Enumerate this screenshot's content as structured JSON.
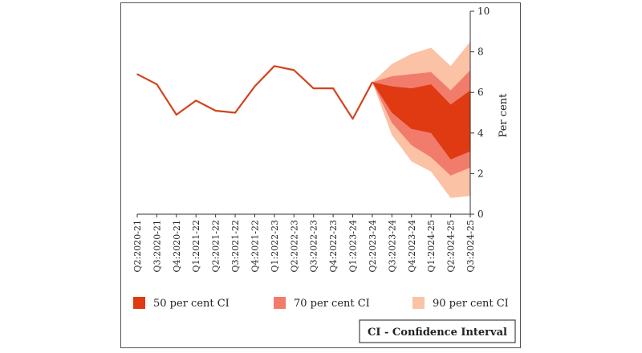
{
  "chart_data": {
    "type": "line",
    "categories": [
      "Q2:2020-21",
      "Q3:2020-21",
      "Q4:2020-21",
      "Q1:2021-22",
      "Q2:2021-22",
      "Q3:2021-22",
      "Q4:2021-22",
      "Q1:2022-23",
      "Q2:2022-23",
      "Q3:2022-23",
      "Q4:2022-23",
      "Q1:2023-24",
      "Q2:2023-24",
      "Q3:2023-24",
      "Q4:2023-24",
      "Q1:2024-25",
      "Q2:2024-25",
      "Q3:2024-25"
    ],
    "series": [
      {
        "values": [
          6.9,
          6.4,
          4.9,
          5.6,
          5.1,
          5.0,
          6.3,
          7.3,
          7.1,
          6.2,
          6.2,
          4.7,
          6.5,
          null,
          null,
          null,
          null,
          null
        ]
      }
    ],
    "bands": {
      "forecast_start_index": 12,
      "ci90": {
        "upper": [
          6.5,
          7.4,
          7.9,
          8.2,
          7.3,
          8.5
        ],
        "lower": [
          6.5,
          3.9,
          2.6,
          2.1,
          0.8,
          0.9
        ]
      },
      "ci70": {
        "upper": [
          6.5,
          6.8,
          6.9,
          7.0,
          6.1,
          7.1
        ],
        "lower": [
          6.5,
          4.5,
          3.4,
          2.8,
          1.9,
          2.3
        ]
      },
      "ci50": {
        "upper": [
          6.5,
          6.3,
          6.2,
          6.4,
          5.4,
          6.1
        ],
        "lower": [
          6.5,
          5.0,
          4.2,
          4.0,
          2.7,
          3.1
        ]
      }
    },
    "ylabel": "Per cent",
    "ylim": [
      0,
      10
    ],
    "yticks": [
      0,
      2,
      4,
      6,
      8,
      10
    ],
    "grid": false,
    "legend": [
      {
        "label": "50 per cent CI",
        "color": "#e03a12"
      },
      {
        "label": "70 per cent CI",
        "color": "#f27c6c"
      },
      {
        "label": "90 per cent CI",
        "color": "#fbc2a6"
      }
    ],
    "legend_placement": "bottom",
    "line_color": "#d2441c"
  },
  "note": "CI - Confidence Interval"
}
